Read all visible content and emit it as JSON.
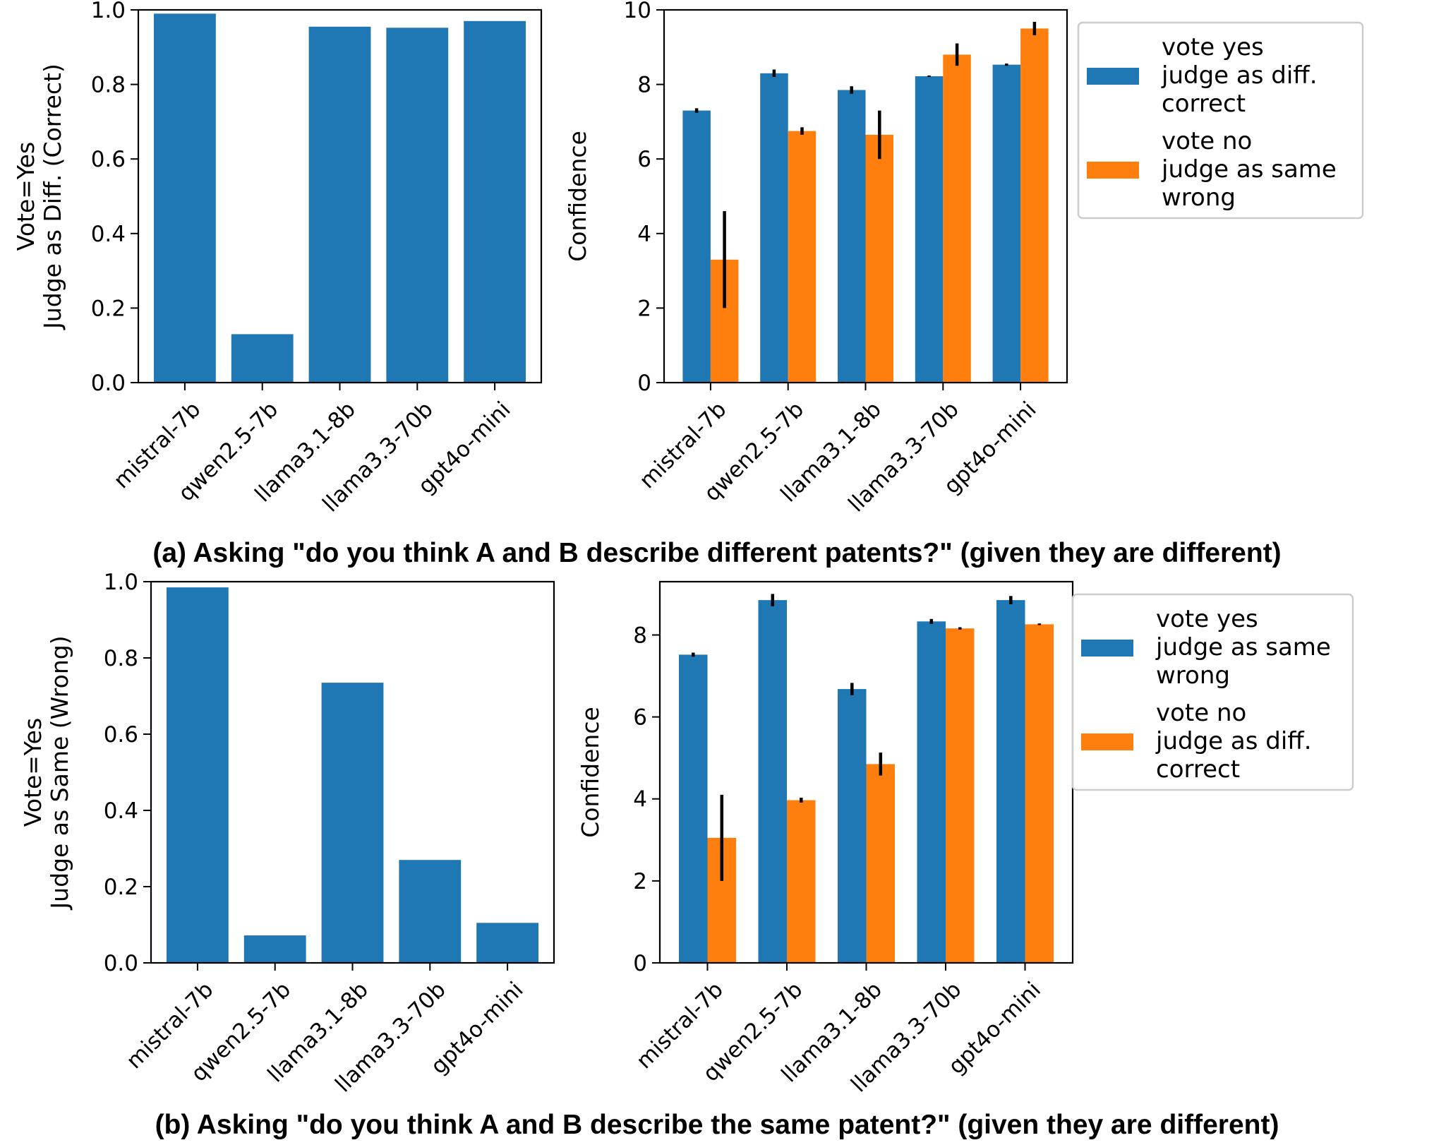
{
  "captions": {
    "a": "(a) Asking \"do you think A and B describe different patents?\" (given they are different)",
    "b": "(b) Asking \"do you think A and B describe the same patent?\" (given they are different)"
  },
  "chart_data": [
    {
      "id": "a_left",
      "type": "bar",
      "categories": [
        "mistral-7b",
        "qwen2.5-7b",
        "llama3.1-8b",
        "llama3.3-70b",
        "gpt4o-mini"
      ],
      "values": [
        0.99,
        0.13,
        0.955,
        0.952,
        0.97
      ],
      "ylabel_lines": [
        "Vote=Yes",
        "Judge as Diff. (Correct)"
      ],
      "xlabel": "",
      "ylim": [
        0,
        1.0
      ],
      "yticks": [
        "0.0",
        "0.2",
        "0.4",
        "0.6",
        "0.8",
        "1.0"
      ],
      "color": "#1f77b4"
    },
    {
      "id": "a_right",
      "type": "bar",
      "categories": [
        "mistral-7b",
        "qwen2.5-7b",
        "llama3.1-8b",
        "llama3.3-70b",
        "gpt4o-mini"
      ],
      "series": [
        {
          "name": "vote yes judge as diff. correct",
          "legend_lines": [
            "vote yes",
            "judge as diff.",
            "correct"
          ],
          "color": "#1f77b4",
          "values": [
            7.3,
            8.3,
            7.85,
            8.22,
            8.53
          ],
          "err": [
            0.06,
            0.1,
            0.1,
            0.02,
            0.03
          ]
        },
        {
          "name": "vote no judge as same wrong",
          "legend_lines": [
            "vote no",
            "judge as same",
            "wrong"
          ],
          "color": "#ff7f0e",
          "values": [
            3.3,
            6.75,
            6.65,
            8.8,
            9.5
          ],
          "err": [
            1.3,
            0.1,
            0.65,
            0.3,
            0.18
          ]
        }
      ],
      "ylabel": "Confidence",
      "xlabel": "",
      "ylim": [
        0,
        10
      ],
      "yticks": [
        "0",
        "2",
        "4",
        "6",
        "8",
        "10"
      ],
      "legend_position": "right"
    },
    {
      "id": "b_left",
      "type": "bar",
      "categories": [
        "mistral-7b",
        "qwen2.5-7b",
        "llama3.1-8b",
        "llama3.3-70b",
        "gpt4o-mini"
      ],
      "values": [
        0.985,
        0.072,
        0.735,
        0.27,
        0.105
      ],
      "ylabel_lines": [
        "Vote=Yes",
        "Judge as Same (Wrong)"
      ],
      "xlabel": "",
      "ylim": [
        0,
        1.0
      ],
      "yticks": [
        "0.0",
        "0.2",
        "0.4",
        "0.6",
        "0.8",
        "1.0"
      ],
      "color": "#1f77b4"
    },
    {
      "id": "b_right",
      "type": "bar",
      "categories": [
        "mistral-7b",
        "qwen2.5-7b",
        "llama3.1-8b",
        "llama3.3-70b",
        "gpt4o-mini"
      ],
      "series": [
        {
          "name": "vote yes judge as same wrong",
          "legend_lines": [
            "vote yes",
            "judge as same",
            "wrong"
          ],
          "color": "#1f77b4",
          "values": [
            7.52,
            8.85,
            6.68,
            8.33,
            8.85
          ],
          "err": [
            0.05,
            0.15,
            0.15,
            0.06,
            0.1
          ]
        },
        {
          "name": "vote no judge as diff. correct",
          "legend_lines": [
            "vote no",
            "judge as diff.",
            "correct"
          ],
          "color": "#ff7f0e",
          "values": [
            3.05,
            3.97,
            4.85,
            8.16,
            8.26
          ],
          "err": [
            1.05,
            0.06,
            0.28,
            0.03,
            0.02
          ]
        }
      ],
      "ylabel": "Confidence",
      "xlabel": "",
      "ylim": [
        0,
        9.3
      ],
      "yticks": [
        "0",
        "2",
        "4",
        "6",
        "8"
      ],
      "legend_position": "right"
    }
  ]
}
